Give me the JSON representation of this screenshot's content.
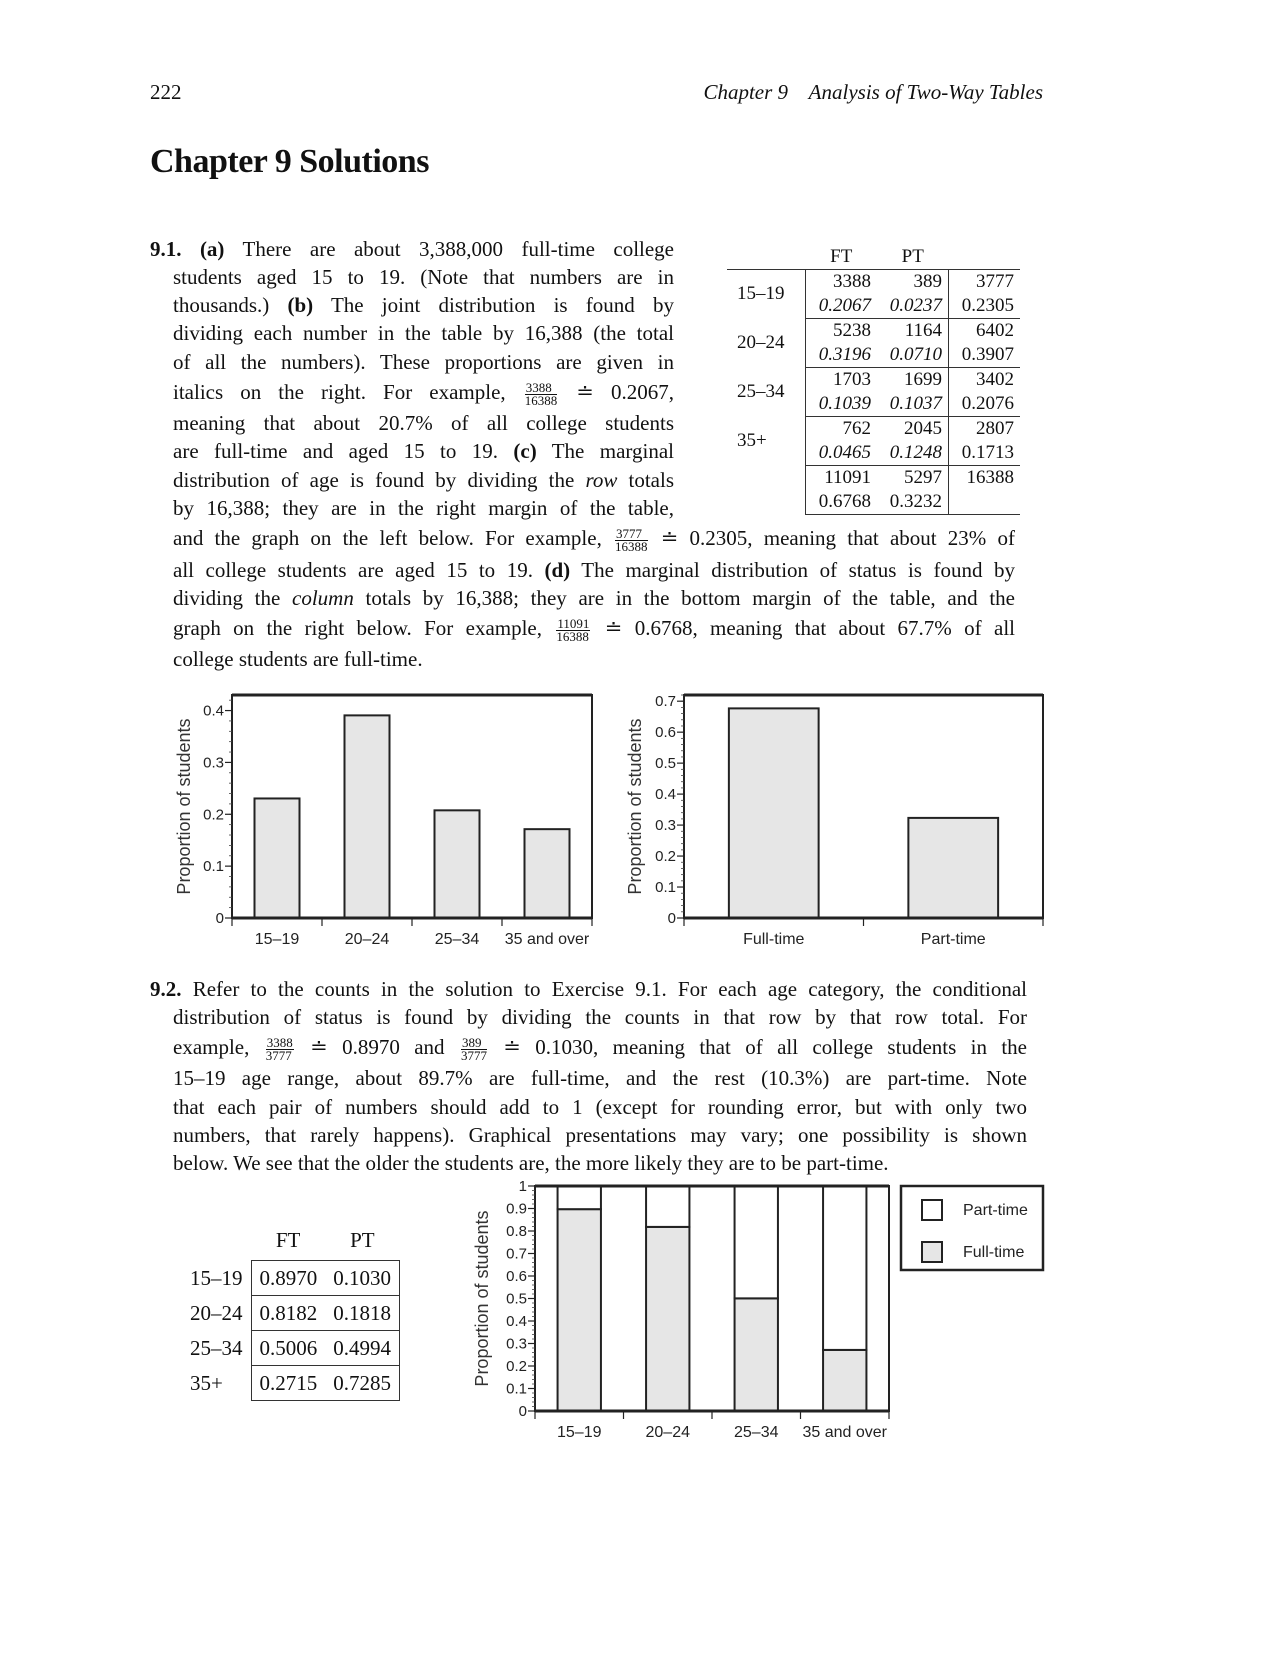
{
  "header": {
    "page_number": "222",
    "running_head": "Chapter 9    Analysis of Two-Way Tables"
  },
  "title": "Chapter 9 Solutions",
  "ex91": {
    "lines": [
      [
        {
          "b": "9.1."
        },
        {
          "t": " "
        },
        {
          "b": "(a)"
        },
        {
          "t": " There are about 3,388,000 full-time college"
        }
      ],
      [
        {
          "t": "students aged 15 to 19. (Note that numbers are in"
        }
      ],
      [
        {
          "t": "thousands.) "
        },
        {
          "b": "(b)"
        },
        {
          "t": " The joint distribution is found by"
        }
      ],
      [
        {
          "t": "dividing each number in the table by 16,388 (the total"
        }
      ],
      [
        {
          "t": "of all the numbers). These proportions are given in"
        }
      ],
      [
        {
          "t": "italics on the right. For example, "
        },
        {
          "num": "3388",
          "den": "16388"
        },
        {
          "t": " ≐ 0.2067,"
        }
      ],
      [
        {
          "t": "meaning that about 20.7% of all college students"
        }
      ],
      [
        {
          "t": "are full-time and aged 15 to 19. "
        },
        {
          "b": "(c)"
        },
        {
          "t": " The marginal"
        }
      ],
      [
        {
          "t": "distribution of age is found by dividing the "
        },
        {
          "i": "row"
        },
        {
          "t": " totals"
        }
      ],
      [
        {
          "t": "by 16,388; they are in the right margin of the table,"
        }
      ],
      [
        {
          "t": "and the graph on the left below. For example, "
        },
        {
          "num": "3777",
          "den": "16388"
        },
        {
          "t": " ≐ 0.2305, meaning that about 23% of"
        }
      ],
      [
        {
          "t": "all college students are aged 15 to 19. "
        },
        {
          "b": "(d)"
        },
        {
          "t": " The marginal distribution of status is found by"
        }
      ],
      [
        {
          "t": "dividing the "
        },
        {
          "i": "column"
        },
        {
          "t": " totals by 16,388; they are in the bottom margin of the table, and the"
        }
      ],
      [
        {
          "t": "graph on the right below. For example, "
        },
        {
          "num": "11091",
          "den": "16388"
        },
        {
          "t": " ≐ 0.6768, meaning that about 67.7% of all"
        }
      ],
      [
        {
          "t": "college students are full-time."
        }
      ]
    ],
    "table": {
      "columns": [
        "FT",
        "PT"
      ],
      "rows": [
        {
          "label": "15–19",
          "counts": [
            "3388",
            "389",
            "3777"
          ],
          "props": [
            "0.2067",
            "0.0237",
            "0.2305"
          ]
        },
        {
          "label": "20–24",
          "counts": [
            "5238",
            "1164",
            "6402"
          ],
          "props": [
            "0.3196",
            "0.0710",
            "0.3907"
          ]
        },
        {
          "label": "25–34",
          "counts": [
            "1703",
            "1699",
            "3402"
          ],
          "props": [
            "0.1039",
            "0.1037",
            "0.2076"
          ]
        },
        {
          "label": "35+",
          "counts": [
            "762",
            "2045",
            "2807"
          ],
          "props": [
            "0.0465",
            "0.1248",
            "0.1713"
          ]
        }
      ],
      "totals": {
        "counts": [
          "11091",
          "5297",
          "16388"
        ],
        "props": [
          "0.6768",
          "0.3232"
        ]
      }
    }
  },
  "ex92": {
    "lines": [
      [
        {
          "b": "9.2."
        },
        {
          "t": " Refer to the counts in the solution to Exercise 9.1. For each age category, the conditional"
        }
      ],
      [
        {
          "t": "distribution of status is found by dividing the counts in that row by that row total. For"
        }
      ],
      [
        {
          "t": "example, "
        },
        {
          "num": "3388",
          "den": "3777"
        },
        {
          "t": " ≐ 0.8970 and "
        },
        {
          "num": "389",
          "den": "3777"
        },
        {
          "t": " ≐ 0.1030, meaning that of all college students in the"
        }
      ],
      [
        {
          "t": "15–19 age range, about 89.7% are full-time, and the rest (10.3%) are part-time. Note"
        }
      ],
      [
        {
          "t": "that each pair of numbers should add to 1 (except for rounding error, but with only two"
        }
      ],
      [
        {
          "t": "numbers, that rarely happens). Graphical presentations may vary; one possibility is shown"
        }
      ],
      [
        {
          "t": "below. We see that the older the students are, the more likely they are to be part-time."
        }
      ]
    ],
    "table": {
      "columns": [
        "FT",
        "PT"
      ],
      "rows": [
        {
          "label": "15–19",
          "values": [
            "0.8970",
            "0.1030"
          ]
        },
        {
          "label": "20–24",
          "values": [
            "0.8182",
            "0.1818"
          ]
        },
        {
          "label": "25–34",
          "values": [
            "0.5006",
            "0.4994"
          ]
        },
        {
          "label": "35+",
          "values": [
            "0.2715",
            "0.7285"
          ]
        }
      ]
    }
  },
  "chart_data": [
    {
      "type": "bar",
      "categories": [
        "15–19",
        "20–24",
        "25–34",
        "35 and over"
      ],
      "values": [
        0.2305,
        0.3907,
        0.2076,
        0.1713
      ],
      "ylabel": "Proportion of students",
      "xlabel": "",
      "ylim": [
        0,
        0.43
      ],
      "yticks": [
        "0",
        "0.1",
        "0.2",
        "0.3",
        "0.4"
      ],
      "bar_color": "#e6e6e6"
    },
    {
      "type": "bar",
      "categories": [
        "Full-time",
        "Part-time"
      ],
      "values": [
        0.6768,
        0.3232
      ],
      "ylabel": "Proportion of students",
      "xlabel": "",
      "ylim": [
        0,
        0.72
      ],
      "yticks": [
        "0",
        "0.1",
        "0.2",
        "0.3",
        "0.4",
        "0.5",
        "0.6",
        "0.7"
      ],
      "bar_color": "#e6e6e6"
    },
    {
      "type": "bar",
      "stacked": true,
      "categories": [
        "15–19",
        "20–24",
        "25–34",
        "35 and over"
      ],
      "series": [
        {
          "name": "Full-time",
          "values": [
            0.897,
            0.8182,
            0.5006,
            0.2715
          ],
          "color": "#e6e6e6"
        },
        {
          "name": "Part-time",
          "values": [
            0.103,
            0.1818,
            0.4994,
            0.7285
          ],
          "color": "#ffffff"
        }
      ],
      "ylabel": "Proportion of students",
      "xlabel": "",
      "ylim": [
        0,
        1
      ],
      "yticks": [
        "0",
        "0.1",
        "0.2",
        "0.3",
        "0.4",
        "0.5",
        "0.6",
        "0.7",
        "0.8",
        "0.9",
        "1"
      ],
      "legend": {
        "placement": "right",
        "entries": [
          "Part-time",
          "Full-time"
        ]
      }
    }
  ]
}
